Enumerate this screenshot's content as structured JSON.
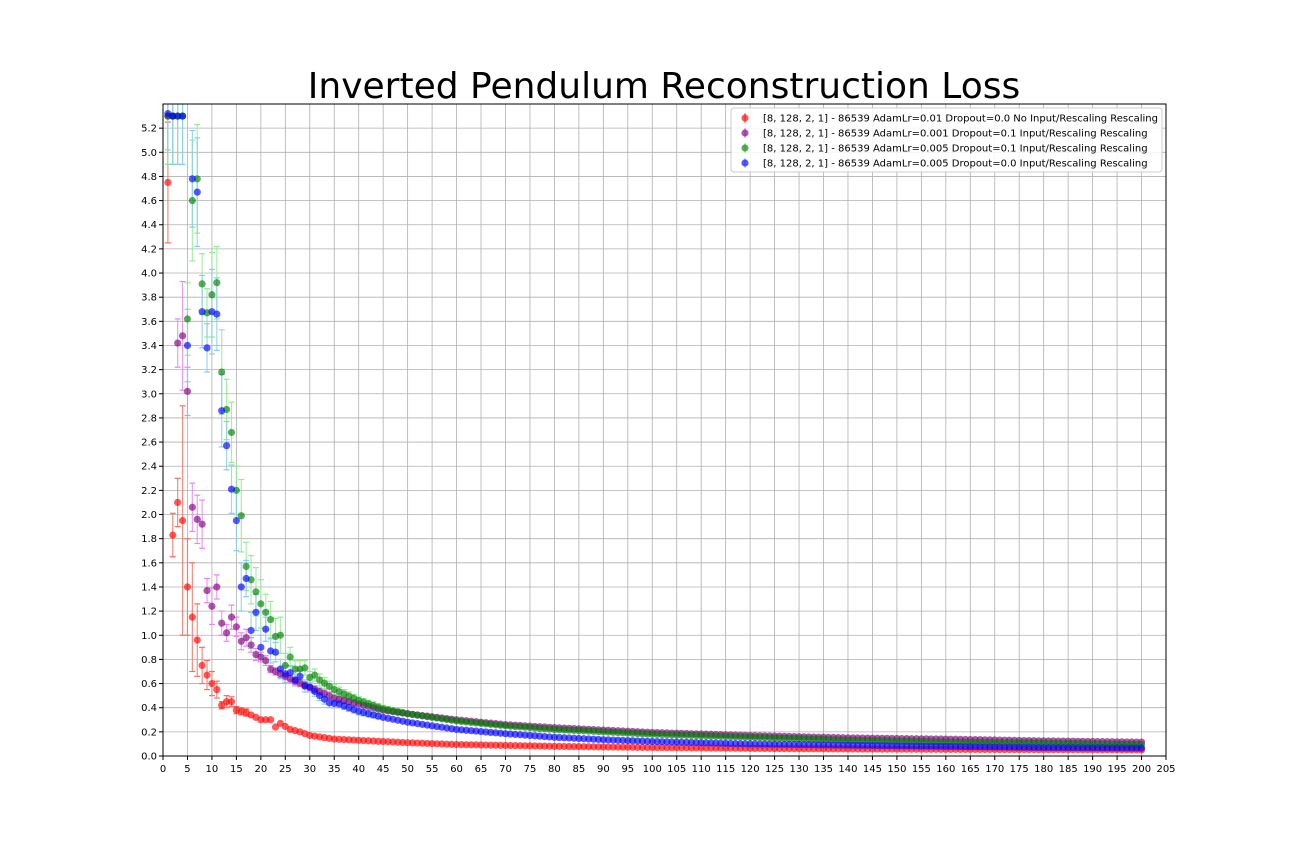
{
  "chart_data": {
    "type": "scatter",
    "title": "Inverted Pendulum Reconstruction Loss",
    "xlabel": "",
    "ylabel": "",
    "xlim": [
      0,
      205
    ],
    "ylim": [
      0,
      5.4
    ],
    "x_ticks": [
      0,
      5,
      10,
      15,
      20,
      25,
      30,
      35,
      40,
      45,
      50,
      55,
      60,
      65,
      70,
      75,
      80,
      85,
      90,
      95,
      100,
      105,
      110,
      115,
      120,
      125,
      130,
      135,
      140,
      145,
      150,
      155,
      160,
      165,
      170,
      175,
      180,
      185,
      190,
      195,
      200,
      205
    ],
    "y_ticks": [
      0.0,
      0.2,
      0.4,
      0.6,
      0.8,
      1.0,
      1.2,
      1.4,
      1.6,
      1.8,
      2.0,
      2.2,
      2.4,
      2.6,
      2.8,
      3.0,
      3.2,
      3.4,
      3.6,
      3.8,
      4.0,
      4.2,
      4.4,
      4.6,
      4.8,
      5.0,
      5.2
    ],
    "grid": true,
    "legend_position": "top-right",
    "x_count": 200,
    "series": [
      {
        "name": "[8, 128, 2, 1] - 86539 AdamLr=0.01 Dropout=0.0 No Input/Rescaling Rescaling",
        "color": "#ff0000",
        "error_color": "#ff6b5b",
        "key_points": [
          [
            1,
            4.75,
            0.5
          ],
          [
            2,
            1.83,
            0.18
          ],
          [
            3,
            2.1,
            0.2
          ],
          [
            4,
            1.95,
            0.95
          ],
          [
            5,
            1.4,
            0.4
          ],
          [
            6,
            1.15,
            0.45
          ],
          [
            7,
            0.96,
            0.3
          ],
          [
            8,
            0.75,
            0.15
          ],
          [
            9,
            0.67,
            0.12
          ],
          [
            10,
            0.6,
            0.1
          ],
          [
            11,
            0.55,
            0.07
          ],
          [
            12,
            0.42,
            0.03
          ],
          [
            13,
            0.45,
            0.05
          ],
          [
            14,
            0.45,
            0.04
          ],
          [
            15,
            0.38,
            0.03
          ],
          [
            17,
            0.36,
            0.03
          ],
          [
            18,
            0.34,
            0.02
          ],
          [
            20,
            0.3,
            0.02
          ],
          [
            22,
            0.3,
            0.02
          ],
          [
            23,
            0.24,
            0.02
          ],
          [
            24,
            0.27,
            0.02
          ],
          [
            26,
            0.22,
            0.02
          ],
          [
            28,
            0.2,
            0.02
          ],
          [
            30,
            0.17,
            0.01
          ],
          [
            35,
            0.14,
            0.01
          ],
          [
            40,
            0.13,
            0.01
          ],
          [
            50,
            0.11,
            0.01
          ],
          [
            60,
            0.095,
            0.01
          ],
          [
            80,
            0.08,
            0.01
          ],
          [
            100,
            0.07,
            0.008
          ],
          [
            130,
            0.06,
            0.008
          ],
          [
            160,
            0.055,
            0.008
          ],
          [
            200,
            0.05,
            0.008
          ]
        ]
      },
      {
        "name": "[8, 128, 2, 1] - 86539 AdamLr=0.001 Dropout=0.1 Input/Rescaling Rescaling",
        "color": "#800080",
        "error_color": "#ee82ee",
        "key_points": [
          [
            1,
            5.3,
            0.4
          ],
          [
            2,
            5.3,
            0.4
          ],
          [
            3,
            3.42,
            0.2
          ],
          [
            4,
            3.48,
            0.45
          ],
          [
            5,
            3.02,
            0.2
          ],
          [
            6,
            2.06,
            0.2
          ],
          [
            7,
            1.96,
            0.2
          ],
          [
            8,
            1.92,
            0.2
          ],
          [
            9,
            1.37,
            0.1
          ],
          [
            10,
            1.24,
            0.15
          ],
          [
            11,
            1.4,
            0.1
          ],
          [
            12,
            1.1,
            0.1
          ],
          [
            13,
            1.02,
            0.07
          ],
          [
            14,
            1.15,
            0.1
          ],
          [
            15,
            1.07,
            0.08
          ],
          [
            16,
            0.95,
            0.07
          ],
          [
            17,
            0.98,
            0.07
          ],
          [
            18,
            0.92,
            0.06
          ],
          [
            19,
            0.84,
            0.05
          ],
          [
            20,
            0.82,
            0.04
          ],
          [
            21,
            0.79,
            0.04
          ],
          [
            22,
            0.72,
            0.03
          ],
          [
            23,
            0.7,
            0.03
          ],
          [
            25,
            0.66,
            0.03
          ],
          [
            27,
            0.62,
            0.03
          ],
          [
            30,
            0.57,
            0.03
          ],
          [
            35,
            0.48,
            0.03
          ],
          [
            40,
            0.43,
            0.02
          ],
          [
            45,
            0.38,
            0.02
          ],
          [
            50,
            0.35,
            0.02
          ],
          [
            60,
            0.3,
            0.02
          ],
          [
            70,
            0.26,
            0.015
          ],
          [
            80,
            0.235,
            0.015
          ],
          [
            90,
            0.215,
            0.015
          ],
          [
            100,
            0.195,
            0.012
          ],
          [
            120,
            0.17,
            0.01
          ],
          [
            140,
            0.15,
            0.01
          ],
          [
            160,
            0.14,
            0.01
          ],
          [
            180,
            0.125,
            0.01
          ],
          [
            200,
            0.115,
            0.01
          ]
        ]
      },
      {
        "name": "[8, 128, 2, 1] - 86539 AdamLr=0.005 Dropout=0.1 Input/Rescaling Rescaling",
        "color": "#008000",
        "error_color": "#90ee90",
        "key_points": [
          [
            1,
            5.3,
            0.4
          ],
          [
            2,
            5.3,
            0.4
          ],
          [
            3,
            5.3,
            0.4
          ],
          [
            4,
            5.3,
            0.4
          ],
          [
            5,
            3.62,
            0.3
          ],
          [
            6,
            4.6,
            0.5
          ],
          [
            7,
            4.78,
            0.45
          ],
          [
            8,
            3.91,
            0.25
          ],
          [
            9,
            3.67,
            0.2
          ],
          [
            10,
            3.82,
            0.35
          ],
          [
            11,
            3.92,
            0.3
          ],
          [
            12,
            3.18,
            0.35
          ],
          [
            13,
            2.87,
            0.25
          ],
          [
            14,
            2.68,
            0.25
          ],
          [
            15,
            2.2,
            0.2
          ],
          [
            16,
            1.99,
            0.3
          ],
          [
            17,
            1.57,
            0.2
          ],
          [
            18,
            1.46,
            0.2
          ],
          [
            19,
            1.36,
            0.2
          ],
          [
            20,
            1.26,
            0.2
          ],
          [
            21,
            1.19,
            0.15
          ],
          [
            22,
            1.13,
            0.15
          ],
          [
            23,
            0.99,
            0.15
          ],
          [
            24,
            1.0,
            0.15
          ],
          [
            25,
            0.75,
            0.1
          ],
          [
            26,
            0.82,
            0.08
          ],
          [
            27,
            0.72,
            0.07
          ],
          [
            28,
            0.72,
            0.07
          ],
          [
            29,
            0.73,
            0.06
          ],
          [
            30,
            0.65,
            0.05
          ],
          [
            31,
            0.67,
            0.05
          ],
          [
            32,
            0.63,
            0.05
          ],
          [
            35,
            0.55,
            0.04
          ],
          [
            40,
            0.46,
            0.03
          ],
          [
            45,
            0.39,
            0.03
          ],
          [
            50,
            0.35,
            0.02
          ],
          [
            55,
            0.32,
            0.02
          ],
          [
            60,
            0.29,
            0.02
          ],
          [
            70,
            0.25,
            0.015
          ],
          [
            80,
            0.22,
            0.015
          ],
          [
            90,
            0.2,
            0.012
          ],
          [
            100,
            0.18,
            0.012
          ],
          [
            120,
            0.155,
            0.01
          ],
          [
            140,
            0.13,
            0.01
          ],
          [
            160,
            0.115,
            0.01
          ],
          [
            180,
            0.105,
            0.01
          ],
          [
            200,
            0.095,
            0.01
          ]
        ]
      },
      {
        "name": "[8, 128, 2, 1] - 86539 AdamLr=0.005 Dropout=0.0 Input/Rescaling Rescaling",
        "color": "#0000ff",
        "error_color": "#87ceeb",
        "key_points": [
          [
            1,
            5.32,
            0.3
          ],
          [
            2,
            5.3,
            0.4
          ],
          [
            3,
            5.3,
            0.4
          ],
          [
            4,
            5.3,
            0.4
          ],
          [
            5,
            3.4,
            0.3
          ],
          [
            6,
            4.78,
            0.4
          ],
          [
            7,
            4.67,
            0.45
          ],
          [
            8,
            3.68,
            0.3
          ],
          [
            9,
            3.38,
            0.2
          ],
          [
            10,
            3.68,
            0.35
          ],
          [
            11,
            3.66,
            0.3
          ],
          [
            12,
            2.86,
            0.3
          ],
          [
            13,
            2.57,
            0.2
          ],
          [
            14,
            2.21,
            0.2
          ],
          [
            15,
            1.95,
            0.25
          ],
          [
            16,
            1.4,
            0.2
          ],
          [
            17,
            1.47,
            0.15
          ],
          [
            18,
            1.04,
            0.15
          ],
          [
            19,
            1.19,
            0.15
          ],
          [
            20,
            0.9,
            0.1
          ],
          [
            21,
            1.05,
            0.1
          ],
          [
            22,
            0.87,
            0.1
          ],
          [
            23,
            0.86,
            0.08
          ],
          [
            24,
            0.72,
            0.08
          ],
          [
            25,
            0.68,
            0.07
          ],
          [
            26,
            0.69,
            0.06
          ],
          [
            27,
            0.63,
            0.05
          ],
          [
            28,
            0.66,
            0.05
          ],
          [
            29,
            0.58,
            0.05
          ],
          [
            30,
            0.57,
            0.04
          ],
          [
            32,
            0.5,
            0.04
          ],
          [
            34,
            0.44,
            0.04
          ],
          [
            36,
            0.43,
            0.03
          ],
          [
            40,
            0.37,
            0.03
          ],
          [
            45,
            0.32,
            0.02
          ],
          [
            50,
            0.28,
            0.02
          ],
          [
            55,
            0.25,
            0.02
          ],
          [
            60,
            0.22,
            0.015
          ],
          [
            70,
            0.185,
            0.015
          ],
          [
            80,
            0.155,
            0.01
          ],
          [
            90,
            0.135,
            0.01
          ],
          [
            100,
            0.12,
            0.01
          ],
          [
            120,
            0.1,
            0.01
          ],
          [
            140,
            0.09,
            0.008
          ],
          [
            160,
            0.08,
            0.008
          ],
          [
            180,
            0.07,
            0.008
          ],
          [
            200,
            0.065,
            0.008
          ]
        ]
      }
    ]
  }
}
